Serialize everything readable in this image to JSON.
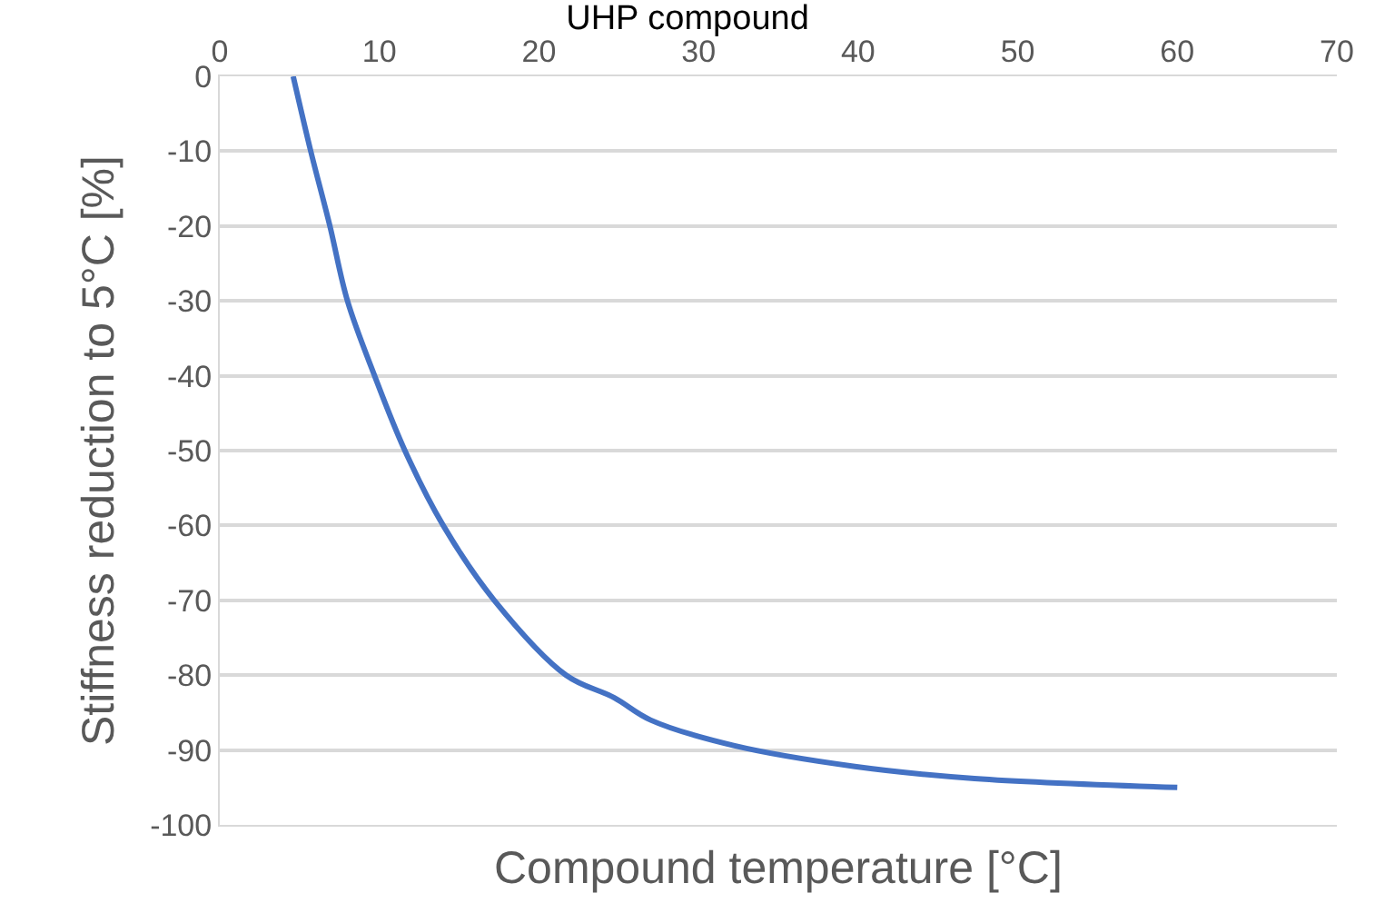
{
  "chart_data": {
    "type": "line",
    "title": "UHP compound",
    "xlabel": "Compound temperature [°C]",
    "ylabel": "Stiffness reduction to 5°C [%]",
    "x": [
      4.6,
      5.7,
      6.9,
      8,
      9.7,
      11.6,
      14,
      17.2,
      21.7,
      24.7,
      27,
      32.2,
      39.8,
      47.3,
      60
    ],
    "series": [
      {
        "color": "#4472c4",
        "values": [
          0,
          -10,
          -20,
          -30,
          -40,
          -50,
          -60,
          -70,
          -80,
          -83,
          -86,
          -89.4,
          -92.2,
          -93.8,
          -95
        ]
      }
    ],
    "xlim": [
      0,
      70
    ],
    "xticks": [
      0,
      10,
      20,
      30,
      40,
      50,
      60,
      70
    ],
    "ylim": [
      -100,
      0
    ],
    "yticks": [
      -100,
      -90,
      -80,
      -70,
      -60,
      -50,
      -40,
      -30,
      -20,
      -10,
      0
    ],
    "grid": "y",
    "marker": "none",
    "line_style": "solid"
  }
}
